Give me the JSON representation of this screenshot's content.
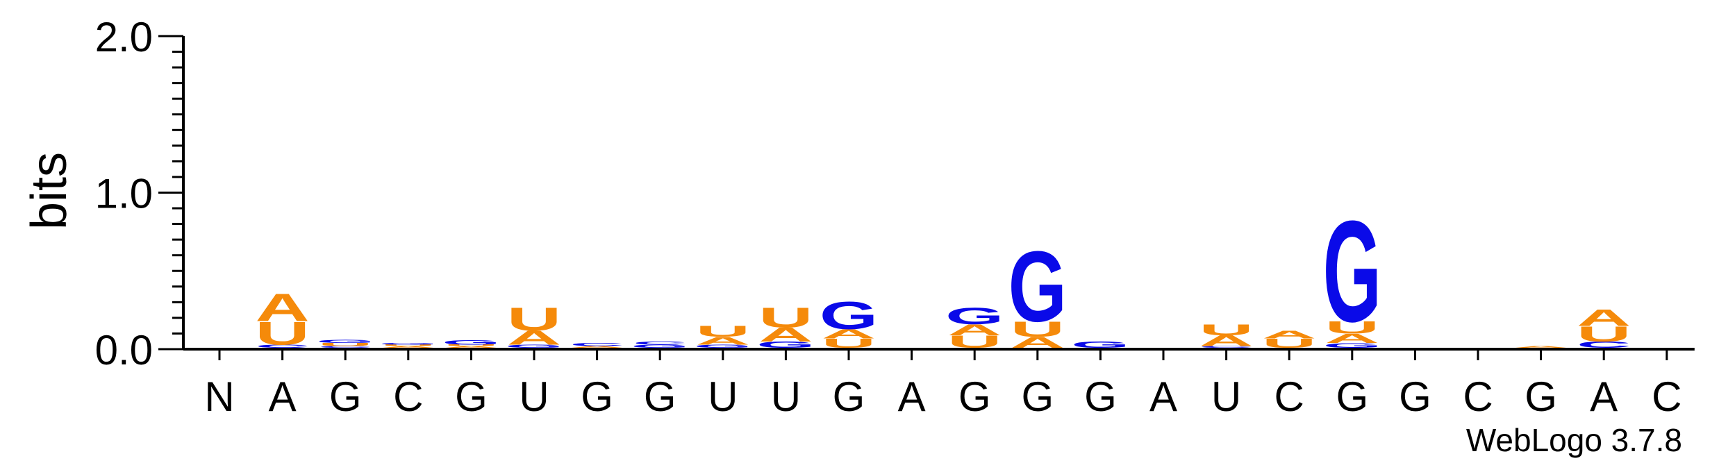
{
  "chart_data": {
    "type": "sequence-logo",
    "ylabel": "bits",
    "ylim": [
      0,
      2.0
    ],
    "yticks": [
      "0.0",
      "1.0",
      "2.0"
    ],
    "positions": [
      "N",
      "A",
      "G",
      "C",
      "G",
      "U",
      "G",
      "G",
      "U",
      "U",
      "G",
      "A",
      "G",
      "G",
      "G",
      "A",
      "U",
      "C",
      "G",
      "G",
      "C",
      "G",
      "A",
      "C"
    ],
    "colors": {
      "A": "#f58a0a",
      "U": "#f58a0a",
      "G": "#0a0ae8",
      "C": "#0a0ae8"
    },
    "stacks": [
      [],
      [
        [
          "C",
          0.02
        ],
        [
          "U",
          0.15
        ],
        [
          "A",
          0.18
        ]
      ],
      [
        [
          "C",
          0.01
        ],
        [
          "U",
          0.02
        ],
        [
          "G",
          0.02
        ]
      ],
      [
        [
          "A",
          0.01
        ],
        [
          "U",
          0.01
        ],
        [
          "G",
          0.01
        ]
      ],
      [
        [
          "A",
          0.01
        ],
        [
          "U",
          0.01
        ],
        [
          "G",
          0.03
        ]
      ],
      [
        [
          "G",
          0.02
        ],
        [
          "A",
          0.09
        ],
        [
          "U",
          0.15
        ]
      ],
      [
        [
          "A",
          0.01
        ],
        [
          "C",
          0.02
        ]
      ],
      [
        [
          "G",
          0.02
        ],
        [
          "C",
          0.02
        ]
      ],
      [
        [
          "G",
          0.02
        ],
        [
          "A",
          0.05
        ],
        [
          "U",
          0.07
        ]
      ],
      [
        [
          "G",
          0.04
        ],
        [
          "A",
          0.09
        ],
        [
          "U",
          0.13
        ]
      ],
      [
        [
          "U",
          0.06
        ],
        [
          "A",
          0.06
        ],
        [
          "G",
          0.18
        ]
      ],
      [],
      [
        [
          "U",
          0.08
        ],
        [
          "A",
          0.07
        ],
        [
          "G",
          0.11
        ]
      ],
      [
        [
          "A",
          0.07
        ],
        [
          "U",
          0.1
        ],
        [
          "G",
          0.46
        ]
      ],
      [
        [
          "G",
          0.04
        ]
      ],
      [],
      [
        [
          "C",
          0.01
        ],
        [
          "A",
          0.07
        ],
        [
          "U",
          0.07
        ]
      ],
      [
        [
          "U",
          0.06
        ],
        [
          "A",
          0.05
        ]
      ],
      [
        [
          "G",
          0.03
        ],
        [
          "A",
          0.06
        ],
        [
          "U",
          0.08
        ],
        [
          "G",
          0.66
        ]
      ],
      [],
      [],
      [
        [
          "A",
          0.01
        ]
      ],
      [
        [
          "C",
          0.04
        ],
        [
          "U",
          0.1
        ],
        [
          "A",
          0.11
        ]
      ],
      []
    ]
  },
  "footer": {
    "credit": "WebLogo 3.7.8"
  }
}
